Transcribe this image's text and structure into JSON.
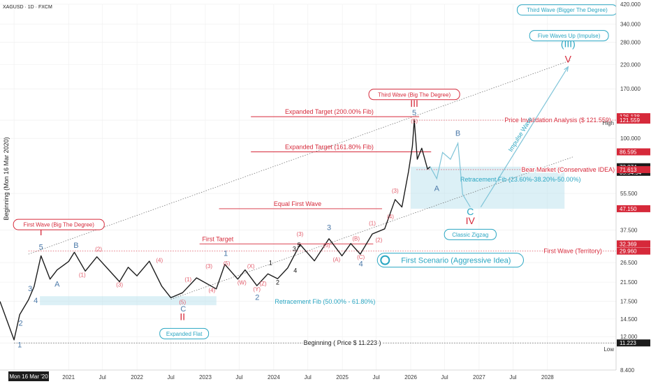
{
  "header": {
    "symbol": "XAGUSD · 1D · FXCM"
  },
  "colors": {
    "candle": "#1c1c1c",
    "red": "#d6293a",
    "teal": "#2aa6c2",
    "blue": "#4a78a8",
    "zone": "#bfe3ee",
    "grid": "#eeeeee"
  },
  "chart_data": {
    "type": "line",
    "xlim": [
      "2020-01-01",
      "2029-01-01"
    ],
    "ylim": [
      8.4,
      420
    ],
    "yscale": "log",
    "x_ticks": [
      {
        "x": "2020-03-16",
        "label": "Mon 16 Mar '20"
      },
      {
        "x": "2021-01-01",
        "label": "2021"
      },
      {
        "x": "2021-07-01",
        "label": "Jul"
      },
      {
        "x": "2022-01-01",
        "label": "2022"
      },
      {
        "x": "2022-07-01",
        "label": "Jul"
      },
      {
        "x": "2023-01-01",
        "label": "2023"
      },
      {
        "x": "2023-07-01",
        "label": "Jul"
      },
      {
        "x": "2024-01-01",
        "label": "2024"
      },
      {
        "x": "2024-07-01",
        "label": "Jul"
      },
      {
        "x": "2025-01-01",
        "label": "2025"
      },
      {
        "x": "2025-07-01",
        "label": "Jul"
      },
      {
        "x": "2026-01-01",
        "label": "2026"
      },
      {
        "x": "2026-07-01",
        "label": "Jul"
      },
      {
        "x": "2027-01-01",
        "label": "2027"
      },
      {
        "x": "2027-07-01",
        "label": "Jul"
      },
      {
        "x": "2028-01-01",
        "label": "2028"
      }
    ],
    "y_ticks": [
      {
        "v": 420,
        "label": "420.000"
      },
      {
        "v": 340,
        "label": "340.000"
      },
      {
        "v": 280,
        "label": "280.000"
      },
      {
        "v": 220,
        "label": "220.000"
      },
      {
        "v": 170,
        "label": "170.000"
      },
      {
        "v": 121.559,
        "label": "121.559"
      },
      {
        "v": 100,
        "label": "100.000"
      },
      {
        "v": 55.5,
        "label": "55.500"
      },
      {
        "v": 37.5,
        "label": "37.500"
      },
      {
        "v": 26.5,
        "label": "26.500"
      },
      {
        "v": 21.5,
        "label": "21.500"
      },
      {
        "v": 17.5,
        "label": "17.500"
      },
      {
        "v": 14.5,
        "label": "14.500"
      },
      {
        "v": 12,
        "label": "12.000"
      },
      {
        "v": 11.223,
        "label": "11.223"
      },
      {
        "v": 8.4,
        "label": "8.400"
      }
    ],
    "price_tags": [
      {
        "v": 126.138,
        "label": "126.138",
        "color": "#d6293a"
      },
      {
        "v": 121.559,
        "label": "121.559",
        "color": "#d6293a"
      },
      {
        "v": 86.595,
        "label": "86.595",
        "color": "#d6293a"
      },
      {
        "v": 73.874,
        "label": "73.874",
        "sub": "05:54:54",
        "color": "#1c1c1c"
      },
      {
        "v": 71.613,
        "label": "71.613",
        "color": "#d6293a"
      },
      {
        "v": 47.15,
        "label": "47.150",
        "color": "#d6293a"
      },
      {
        "v": 32.369,
        "label": "32.369",
        "color": "#d6293a"
      },
      {
        "v": 29.96,
        "label": "29.960",
        "color": "#d6293a"
      },
      {
        "v": 11.223,
        "label": "11.223",
        "color": "#1c1c1c"
      }
    ],
    "side_labels": [
      {
        "v": 118,
        "label": "High"
      },
      {
        "v": 10.5,
        "label": "Low"
      }
    ],
    "series": [
      {
        "x": [
          "2020-01-01",
          "2020-03-16",
          "2020-04-15",
          "2020-06-01",
          "2020-07-01",
          "2020-08-07",
          "2020-09-24",
          "2020-11-01",
          "2021-01-01",
          "2021-02-01",
          "2021-03-31",
          "2021-06-01",
          "2021-09-30",
          "2021-11-15",
          "2022-01-01",
          "2022-03-08",
          "2022-05-13",
          "2022-07-01",
          "2022-09-01",
          "2022-11-15",
          "2023-02-28",
          "2023-04-15",
          "2023-06-23",
          "2023-08-01",
          "2023-10-03",
          "2023-12-01",
          "2024-01-22",
          "2024-03-15",
          "2024-05-20",
          "2024-08-05",
          "2024-10-22",
          "2024-12-30",
          "2025-02-15",
          "2025-04-07",
          "2025-06-10",
          "2025-08-15",
          "2025-10-10",
          "2025-11-15",
          "2025-12-20",
          "2026-01-10",
          "2026-01-20",
          "2026-02-05",
          "2026-03-01",
          "2026-04-01",
          "2026-04-15"
        ],
        "values": [
          17.5,
          11.6,
          15.2,
          17.8,
          20.5,
          28.5,
          22.2,
          24.5,
          26.8,
          29.6,
          24.2,
          28.2,
          21.6,
          25.2,
          23.0,
          26.9,
          20.6,
          18.2,
          19.2,
          22.5,
          20.0,
          26.0,
          22.2,
          24.5,
          20.7,
          23.5,
          22.3,
          25.0,
          32.2,
          27.0,
          34.2,
          28.5,
          32.5,
          29.0,
          36.0,
          38.0,
          52.0,
          48.0,
          70.0,
          92.0,
          121.6,
          80.0,
          90.0,
          72.0,
          73.874
        ]
      }
    ],
    "zones": [
      {
        "x1": "2026-01-01",
        "x2": "2028-04-01",
        "y1": 47.15,
        "y2": 73.874,
        "label": "Retracement Fib (23.60%-38.20%-50.00%)"
      },
      {
        "x1": "2020-08-01",
        "x2": "2023-03-01",
        "y1": 16.8,
        "y2": 18.5,
        "label": "Retracement Fib (50.00% - 61.80%)"
      }
    ],
    "h_lines": [
      {
        "v": 126.138,
        "x1": "2023-09-01",
        "x2": "2026-02-15",
        "label": "Expanded Target (200.00% Fib)",
        "label_x": "2024-03-01",
        "label_above": 1
      },
      {
        "v": 86.595,
        "x1": "2023-09-01",
        "x2": "2026-04-20",
        "label": "Expanded Target (161.80% Fib)",
        "label_x": "2024-03-01",
        "label_above": 1
      },
      {
        "v": 47.15,
        "x1": "2023-03-15",
        "x2": "2025-08-01",
        "label": "Equal First Wave",
        "label_x": "2024-01-01",
        "label_above": 1
      },
      {
        "v": 32.369,
        "x1": "2022-12-01",
        "x2": "2025-06-15",
        "label": "First Target",
        "label_x": "2022-12-15",
        "label_above": 1
      }
    ],
    "dotted_lines": [
      {
        "v": 121.559,
        "x1": "2026-01-20",
        "x2": "2029-01-01",
        "label": "Price Invalidation Analysis ($ 121.559)",
        "label_x": "2028-02-25"
      },
      {
        "v": 71.613,
        "x1": "2026-02-01",
        "x2": "2029-01-01",
        "label": "Bear Market (Conservative IDEA)",
        "label_x": "2028-04-20"
      },
      {
        "v": 29.96,
        "x1": "2020-06-01",
        "x2": "2029-01-01",
        "label": "First Wave (Territory)",
        "label_x": "2028-05-15"
      },
      {
        "v": 11.223,
        "x1": "2020-03-16",
        "x2": "2029-01-01",
        "label": "Beginning ( Price $ 11.223 )",
        "label_x": "2025-01-01"
      }
    ],
    "channel": [
      {
        "x1": "2020-06-01",
        "y1": 29.0,
        "x2": "2028-05-01",
        "y2": 230.0
      },
      {
        "x1": "2022-07-01",
        "y1": 17.9,
        "x2": "2028-05-15",
        "y2": 82.0
      }
    ],
    "impulse_arrow": {
      "x1": "2027-01-10",
      "y1": 48.0,
      "x2": "2028-04-20",
      "y2": 215.0,
      "label": "Impulse Wave"
    },
    "projection": {
      "x": [
        "2026-04-15",
        "2026-05-20",
        "2026-06-20",
        "2026-08-01",
        "2026-09-10",
        "2026-10-05",
        "2026-11-15"
      ],
      "values": [
        73.874,
        65.0,
        86.0,
        80.0,
        95.0,
        55.0,
        48.0
      ]
    },
    "annotations": [
      {
        "text": "I",
        "x": "2020-08-07",
        "y": 35.5,
        "cls": "roman-red"
      },
      {
        "text": "II",
        "x": "2022-09-01",
        "y": 14.3,
        "cls": "roman-red"
      },
      {
        "text": "III",
        "x": "2026-01-20",
        "y": 140,
        "cls": "roman-red"
      },
      {
        "text": "IV",
        "x": "2026-11-15",
        "y": 40.0,
        "cls": "roman-red"
      },
      {
        "text": "V",
        "x": "2028-04-20",
        "y": 225,
        "cls": "roman-red"
      },
      {
        "text": "(III)",
        "x": "2028-04-20",
        "y": 265,
        "cls": "roman-teal"
      },
      {
        "text": "C",
        "x": "2026-11-15",
        "y": 44.0,
        "cls": "roman-teal"
      },
      {
        "text": "5",
        "x": "2020-08-07",
        "y": 30.5,
        "cls": "wave-blue"
      },
      {
        "text": "1",
        "x": "2020-04-15",
        "y": 10.7,
        "cls": "wave-blue"
      },
      {
        "text": "2",
        "x": "2020-04-20",
        "y": 13.5,
        "cls": "wave-blue"
      },
      {
        "text": "3",
        "x": "2020-06-10",
        "y": 19.5,
        "cls": "wave-blue"
      },
      {
        "text": "4",
        "x": "2020-07-10",
        "y": 17.2,
        "cls": "wave-blue"
      },
      {
        "text": "A",
        "x": "2020-11-01",
        "y": 20.5,
        "cls": "wave-blue"
      },
      {
        "text": "B",
        "x": "2021-02-10",
        "y": 31.0,
        "cls": "wave-blue"
      },
      {
        "text": "C",
        "x": "2022-09-05",
        "y": 15.7,
        "cls": "wave-blue"
      },
      {
        "text": "1",
        "x": "2023-04-20",
        "y": 28.5,
        "cls": "wave-blue"
      },
      {
        "text": "2",
        "x": "2023-10-05",
        "y": 17.8,
        "cls": "wave-blue"
      },
      {
        "text": "3",
        "x": "2024-10-22",
        "y": 37.5,
        "cls": "wave-blue"
      },
      {
        "text": "4",
        "x": "2025-04-10",
        "y": 25.5,
        "cls": "wave-blue"
      },
      {
        "text": "5",
        "x": "2026-01-20",
        "y": 128,
        "cls": "wave-blue"
      },
      {
        "text": "A",
        "x": "2026-05-20",
        "y": 57.0,
        "cls": "wave-blue"
      },
      {
        "text": "B",
        "x": "2026-09-10",
        "y": 103,
        "cls": "wave-blue"
      },
      {
        "text": "(2)",
        "x": "2021-06-10",
        "y": 30.0,
        "cls": "wave-small"
      },
      {
        "text": "(1)",
        "x": "2021-03-15",
        "y": 22.8,
        "cls": "wave-small"
      },
      {
        "text": "(3)",
        "x": "2021-09-30",
        "y": 20.5,
        "cls": "wave-small"
      },
      {
        "text": "(4)",
        "x": "2022-05-01",
        "y": 26.6,
        "cls": "wave-small"
      },
      {
        "text": "(5)",
        "x": "2022-09-01",
        "y": 17.0,
        "cls": "wave-small"
      },
      {
        "text": "(1)",
        "x": "2022-10-01",
        "y": 21.7,
        "cls": "wave-small"
      },
      {
        "text": "(3)",
        "x": "2023-01-20",
        "y": 25.0,
        "cls": "wave-small"
      },
      {
        "text": "(4)",
        "x": "2023-02-05",
        "y": 19.3,
        "cls": "wave-small"
      },
      {
        "text": "(5)",
        "x": "2023-04-25",
        "y": 25.7,
        "cls": "wave-small"
      },
      {
        "text": "(W)",
        "x": "2023-07-15",
        "y": 21.0,
        "cls": "wave-small"
      },
      {
        "text": "(X)",
        "x": "2023-09-01",
        "y": 25.0,
        "cls": "wave-small"
      },
      {
        "text": "(Y)",
        "x": "2023-10-03",
        "y": 19.5,
        "cls": "wave-small"
      },
      {
        "text": "(Z)",
        "x": "2023-11-05",
        "y": 20.7,
        "cls": "wave-small"
      },
      {
        "text": "(3)",
        "x": "2024-05-20",
        "y": 35.2,
        "cls": "wave-small"
      },
      {
        "text": "(5)",
        "x": "2024-10-10",
        "y": 31.2,
        "cls": "wave-small"
      },
      {
        "text": "(A)",
        "x": "2024-12-01",
        "y": 26.8,
        "cls": "wave-small"
      },
      {
        "text": "(B)",
        "x": "2025-03-15",
        "y": 33.5,
        "cls": "wave-small"
      },
      {
        "text": "(C)",
        "x": "2025-04-10",
        "y": 27.5,
        "cls": "wave-small"
      },
      {
        "text": "(1)",
        "x": "2025-06-10",
        "y": 39.5,
        "cls": "wave-small"
      },
      {
        "text": "(2)",
        "x": "2025-07-15",
        "y": 33.0,
        "cls": "wave-small"
      },
      {
        "text": "(3)",
        "x": "2025-10-10",
        "y": 56.0,
        "cls": "wave-small"
      },
      {
        "text": "(4)",
        "x": "2025-09-15",
        "y": 42.5,
        "cls": "wave-small"
      },
      {
        "text": "(5)",
        "x": "2026-01-20",
        "y": 118,
        "cls": "wave-small"
      },
      {
        "text": "1",
        "x": "2023-12-15",
        "y": 25.8,
        "cls": "wave-black"
      },
      {
        "text": "2",
        "x": "2024-01-22",
        "y": 21.0,
        "cls": "wave-black"
      },
      {
        "text": "3",
        "x": "2024-04-20",
        "y": 30.0,
        "cls": "wave-black"
      },
      {
        "text": "4",
        "x": "2024-04-25",
        "y": 23.8,
        "cls": "wave-black"
      },
      {
        "text": "5",
        "x": "2024-05-15",
        "y": 31.2,
        "cls": "wave-black"
      }
    ],
    "bubbles": [
      {
        "text": "Third Wave (Bigger The Degree)",
        "x": "2028-04-15",
        "y": 395,
        "color": "#2aa6c2"
      },
      {
        "text": "Five Waves Up (Impulse)",
        "x": "2028-04-25",
        "y": 300,
        "color": "#2aa6c2"
      },
      {
        "text": "Third Wave (Big The Degree)",
        "x": "2026-01-20",
        "y": 160,
        "color": "#d6293a"
      },
      {
        "text": "First Wave (Big The Degree)",
        "x": "2020-11-10",
        "y": 39.8,
        "color": "#d6293a"
      },
      {
        "text": "Classic Zigzag",
        "x": "2026-11-15",
        "y": 35.8,
        "color": "#2aa6c2"
      },
      {
        "text": "Expanded Flat",
        "x": "2022-09-10",
        "y": 12.4,
        "color": "#2aa6c2"
      }
    ],
    "scenario": {
      "text": "First Scenario (Aggressive Idea)",
      "x": "2026-08-01",
      "y": 27.2
    },
    "vertical_label": {
      "text": "Beginning (Mon 16 Mar 2020)",
      "x": "2020-03-16",
      "y": 65.0
    },
    "diag_labels": [
      {
        "text": "Retracement Fib (50.00% - 61.80%)",
        "x": "2024-10-01",
        "y": 17.1
      },
      {
        "text": "Retracement Fib (23.60%-38.20%-50.00%)",
        "x": "2027-08-10",
        "y": 63.0
      }
    ]
  }
}
